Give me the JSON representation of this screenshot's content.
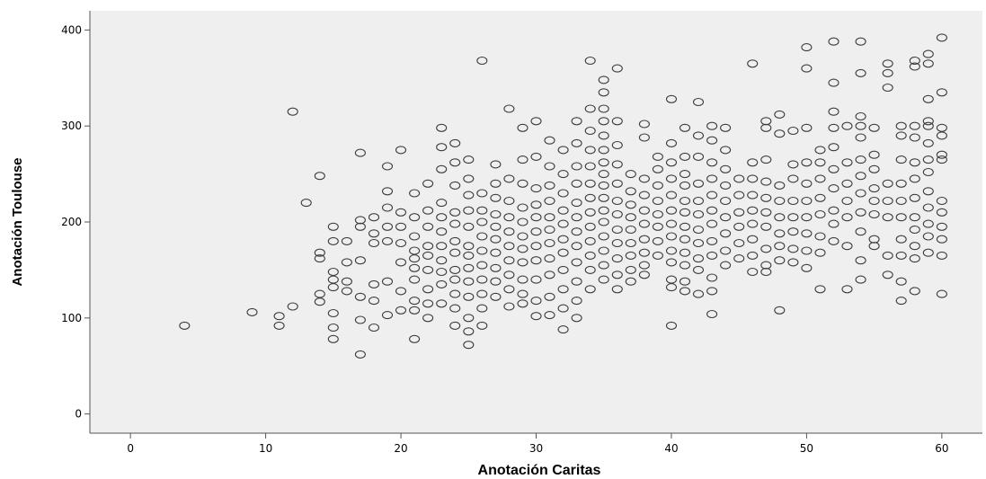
{
  "chart_data": {
    "type": "scatter",
    "title": "",
    "xlabel": "Anotación Caritas",
    "ylabel": "Anotación Toulouse",
    "xlim": [
      -3,
      63
    ],
    "ylim": [
      -20,
      420
    ],
    "xticks": [
      0,
      10,
      20,
      30,
      40,
      50,
      60
    ],
    "yticks": [
      0,
      100,
      200,
      300,
      400
    ],
    "grid": false,
    "legend": "none",
    "colors": {
      "plot_background": "#efefef",
      "marker_stroke": "#3c3c3c",
      "axis": "#555555"
    },
    "marker": "open-circle",
    "points": [
      [
        4,
        92
      ],
      [
        9,
        106
      ],
      [
        11,
        102
      ],
      [
        11,
        92
      ],
      [
        12,
        112
      ],
      [
        12,
        315
      ],
      [
        13,
        220
      ],
      [
        14,
        248
      ],
      [
        14,
        168
      ],
      [
        14,
        162
      ],
      [
        14,
        125
      ],
      [
        14,
        117
      ],
      [
        15,
        195
      ],
      [
        15,
        180
      ],
      [
        15,
        148
      ],
      [
        15,
        140
      ],
      [
        15,
        132
      ],
      [
        15,
        105
      ],
      [
        15,
        90
      ],
      [
        15,
        78
      ],
      [
        16,
        180
      ],
      [
        16,
        158
      ],
      [
        16,
        138
      ],
      [
        16,
        128
      ],
      [
        17,
        272
      ],
      [
        17,
        202
      ],
      [
        17,
        195
      ],
      [
        17,
        160
      ],
      [
        17,
        122
      ],
      [
        17,
        98
      ],
      [
        17,
        62
      ],
      [
        18,
        205
      ],
      [
        18,
        188
      ],
      [
        18,
        178
      ],
      [
        18,
        135
      ],
      [
        18,
        118
      ],
      [
        18,
        90
      ],
      [
        19,
        258
      ],
      [
        19,
        232
      ],
      [
        19,
        215
      ],
      [
        19,
        195
      ],
      [
        19,
        180
      ],
      [
        19,
        138
      ],
      [
        19,
        103
      ],
      [
        20,
        275
      ],
      [
        20,
        210
      ],
      [
        20,
        195
      ],
      [
        20,
        178
      ],
      [
        20,
        158
      ],
      [
        20,
        128
      ],
      [
        20,
        108
      ],
      [
        21,
        230
      ],
      [
        21,
        205
      ],
      [
        21,
        185
      ],
      [
        21,
        170
      ],
      [
        21,
        162
      ],
      [
        21,
        152
      ],
      [
        21,
        140
      ],
      [
        21,
        118
      ],
      [
        21,
        108
      ],
      [
        21,
        78
      ],
      [
        22,
        240
      ],
      [
        22,
        212
      ],
      [
        22,
        195
      ],
      [
        22,
        175
      ],
      [
        22,
        165
      ],
      [
        22,
        150
      ],
      [
        22,
        130
      ],
      [
        22,
        115
      ],
      [
        22,
        100
      ],
      [
        23,
        298
      ],
      [
        23,
        278
      ],
      [
        23,
        255
      ],
      [
        23,
        220
      ],
      [
        23,
        205
      ],
      [
        23,
        190
      ],
      [
        23,
        175
      ],
      [
        23,
        160
      ],
      [
        23,
        148
      ],
      [
        23,
        135
      ],
      [
        23,
        115
      ],
      [
        24,
        282
      ],
      [
        24,
        262
      ],
      [
        24,
        238
      ],
      [
        24,
        210
      ],
      [
        24,
        198
      ],
      [
        24,
        180
      ],
      [
        24,
        168
      ],
      [
        24,
        150
      ],
      [
        24,
        140
      ],
      [
        24,
        125
      ],
      [
        24,
        110
      ],
      [
        24,
        92
      ],
      [
        25,
        265
      ],
      [
        25,
        245
      ],
      [
        25,
        228
      ],
      [
        25,
        212
      ],
      [
        25,
        195
      ],
      [
        25,
        175
      ],
      [
        25,
        165
      ],
      [
        25,
        152
      ],
      [
        25,
        138
      ],
      [
        25,
        122
      ],
      [
        25,
        100
      ],
      [
        25,
        86
      ],
      [
        25,
        72
      ],
      [
        26,
        368
      ],
      [
        26,
        230
      ],
      [
        26,
        212
      ],
      [
        26,
        200
      ],
      [
        26,
        185
      ],
      [
        26,
        170
      ],
      [
        26,
        155
      ],
      [
        26,
        140
      ],
      [
        26,
        125
      ],
      [
        26,
        110
      ],
      [
        26,
        92
      ],
      [
        27,
        260
      ],
      [
        27,
        240
      ],
      [
        27,
        225
      ],
      [
        27,
        208
      ],
      [
        27,
        195
      ],
      [
        27,
        182
      ],
      [
        27,
        168
      ],
      [
        27,
        152
      ],
      [
        27,
        138
      ],
      [
        27,
        122
      ],
      [
        28,
        318
      ],
      [
        28,
        245
      ],
      [
        28,
        222
      ],
      [
        28,
        205
      ],
      [
        28,
        190
      ],
      [
        28,
        175
      ],
      [
        28,
        160
      ],
      [
        28,
        145
      ],
      [
        28,
        130
      ],
      [
        28,
        112
      ],
      [
        29,
        298
      ],
      [
        29,
        265
      ],
      [
        29,
        240
      ],
      [
        29,
        215
      ],
      [
        29,
        200
      ],
      [
        29,
        185
      ],
      [
        29,
        172
      ],
      [
        29,
        158
      ],
      [
        29,
        140
      ],
      [
        29,
        125
      ],
      [
        29,
        115
      ],
      [
        30,
        305
      ],
      [
        30,
        268
      ],
      [
        30,
        235
      ],
      [
        30,
        218
      ],
      [
        30,
        205
      ],
      [
        30,
        190
      ],
      [
        30,
        175
      ],
      [
        30,
        160
      ],
      [
        30,
        140
      ],
      [
        30,
        118
      ],
      [
        30,
        102
      ],
      [
        31,
        285
      ],
      [
        31,
        258
      ],
      [
        31,
        238
      ],
      [
        31,
        222
      ],
      [
        31,
        205
      ],
      [
        31,
        192
      ],
      [
        31,
        178
      ],
      [
        31,
        162
      ],
      [
        31,
        145
      ],
      [
        31,
        122
      ],
      [
        31,
        103
      ],
      [
        32,
        275
      ],
      [
        32,
        250
      ],
      [
        32,
        230
      ],
      [
        32,
        212
      ],
      [
        32,
        198
      ],
      [
        32,
        182
      ],
      [
        32,
        168
      ],
      [
        32,
        150
      ],
      [
        32,
        130
      ],
      [
        32,
        110
      ],
      [
        32,
        88
      ],
      [
        33,
        305
      ],
      [
        33,
        282
      ],
      [
        33,
        258
      ],
      [
        33,
        240
      ],
      [
        33,
        220
      ],
      [
        33,
        205
      ],
      [
        33,
        190
      ],
      [
        33,
        175
      ],
      [
        33,
        158
      ],
      [
        33,
        138
      ],
      [
        33,
        118
      ],
      [
        33,
        100
      ],
      [
        34,
        368
      ],
      [
        34,
        318
      ],
      [
        34,
        295
      ],
      [
        34,
        275
      ],
      [
        34,
        258
      ],
      [
        34,
        240
      ],
      [
        34,
        225
      ],
      [
        34,
        210
      ],
      [
        34,
        195
      ],
      [
        34,
        180
      ],
      [
        34,
        165
      ],
      [
        34,
        150
      ],
      [
        34,
        130
      ],
      [
        35,
        348
      ],
      [
        35,
        335
      ],
      [
        35,
        318
      ],
      [
        35,
        305
      ],
      [
        35,
        290
      ],
      [
        35,
        275
      ],
      [
        35,
        262
      ],
      [
        35,
        250
      ],
      [
        35,
        238
      ],
      [
        35,
        225
      ],
      [
        35,
        212
      ],
      [
        35,
        200
      ],
      [
        35,
        185
      ],
      [
        35,
        170
      ],
      [
        35,
        155
      ],
      [
        35,
        140
      ],
      [
        36,
        360
      ],
      [
        36,
        305
      ],
      [
        36,
        280
      ],
      [
        36,
        260
      ],
      [
        36,
        240
      ],
      [
        36,
        222
      ],
      [
        36,
        208
      ],
      [
        36,
        192
      ],
      [
        36,
        178
      ],
      [
        36,
        162
      ],
      [
        36,
        145
      ],
      [
        36,
        130
      ],
      [
        37,
        250
      ],
      [
        37,
        232
      ],
      [
        37,
        218
      ],
      [
        37,
        205
      ],
      [
        37,
        192
      ],
      [
        37,
        178
      ],
      [
        37,
        165
      ],
      [
        37,
        150
      ],
      [
        37,
        138
      ],
      [
        38,
        302
      ],
      [
        38,
        288
      ],
      [
        38,
        245
      ],
      [
        38,
        228
      ],
      [
        38,
        212
      ],
      [
        38,
        198
      ],
      [
        38,
        182
      ],
      [
        38,
        168
      ],
      [
        38,
        155
      ],
      [
        38,
        145
      ],
      [
        39,
        268
      ],
      [
        39,
        255
      ],
      [
        39,
        238
      ],
      [
        39,
        222
      ],
      [
        39,
        208
      ],
      [
        39,
        195
      ],
      [
        39,
        180
      ],
      [
        39,
        165
      ],
      [
        40,
        328
      ],
      [
        40,
        282
      ],
      [
        40,
        262
      ],
      [
        40,
        245
      ],
      [
        40,
        228
      ],
      [
        40,
        212
      ],
      [
        40,
        198
      ],
      [
        40,
        185
      ],
      [
        40,
        170
      ],
      [
        40,
        158
      ],
      [
        40,
        140
      ],
      [
        40,
        132
      ],
      [
        40,
        92
      ],
      [
        41,
        298
      ],
      [
        41,
        268
      ],
      [
        41,
        250
      ],
      [
        41,
        238
      ],
      [
        41,
        222
      ],
      [
        41,
        210
      ],
      [
        41,
        195
      ],
      [
        41,
        182
      ],
      [
        41,
        168
      ],
      [
        41,
        155
      ],
      [
        41,
        138
      ],
      [
        41,
        128
      ],
      [
        42,
        325
      ],
      [
        42,
        290
      ],
      [
        42,
        268
      ],
      [
        42,
        240
      ],
      [
        42,
        222
      ],
      [
        42,
        208
      ],
      [
        42,
        192
      ],
      [
        42,
        178
      ],
      [
        42,
        162
      ],
      [
        42,
        150
      ],
      [
        42,
        125
      ],
      [
        43,
        300
      ],
      [
        43,
        285
      ],
      [
        43,
        262
      ],
      [
        43,
        245
      ],
      [
        43,
        228
      ],
      [
        43,
        212
      ],
      [
        43,
        198
      ],
      [
        43,
        180
      ],
      [
        43,
        165
      ],
      [
        43,
        142
      ],
      [
        43,
        128
      ],
      [
        43,
        104
      ],
      [
        44,
        298
      ],
      [
        44,
        275
      ],
      [
        44,
        255
      ],
      [
        44,
        238
      ],
      [
        44,
        222
      ],
      [
        44,
        205
      ],
      [
        44,
        188
      ],
      [
        44,
        170
      ],
      [
        44,
        155
      ],
      [
        45,
        245
      ],
      [
        45,
        228
      ],
      [
        45,
        210
      ],
      [
        45,
        195
      ],
      [
        45,
        178
      ],
      [
        45,
        162
      ],
      [
        46,
        365
      ],
      [
        46,
        262
      ],
      [
        46,
        245
      ],
      [
        46,
        228
      ],
      [
        46,
        212
      ],
      [
        46,
        198
      ],
      [
        46,
        182
      ],
      [
        46,
        165
      ],
      [
        46,
        148
      ],
      [
        47,
        305
      ],
      [
        47,
        298
      ],
      [
        47,
        265
      ],
      [
        47,
        242
      ],
      [
        47,
        225
      ],
      [
        47,
        210
      ],
      [
        47,
        195
      ],
      [
        47,
        172
      ],
      [
        47,
        155
      ],
      [
        47,
        148
      ],
      [
        48,
        312
      ],
      [
        48,
        292
      ],
      [
        48,
        238
      ],
      [
        48,
        222
      ],
      [
        48,
        205
      ],
      [
        48,
        188
      ],
      [
        48,
        175
      ],
      [
        48,
        160
      ],
      [
        48,
        108
      ],
      [
        49,
        295
      ],
      [
        49,
        260
      ],
      [
        49,
        245
      ],
      [
        49,
        222
      ],
      [
        49,
        205
      ],
      [
        49,
        190
      ],
      [
        49,
        172
      ],
      [
        49,
        158
      ],
      [
        50,
        382
      ],
      [
        50,
        360
      ],
      [
        50,
        298
      ],
      [
        50,
        262
      ],
      [
        50,
        240
      ],
      [
        50,
        222
      ],
      [
        50,
        205
      ],
      [
        50,
        188
      ],
      [
        50,
        170
      ],
      [
        50,
        152
      ],
      [
        51,
        275
      ],
      [
        51,
        262
      ],
      [
        51,
        245
      ],
      [
        51,
        225
      ],
      [
        51,
        208
      ],
      [
        51,
        185
      ],
      [
        51,
        168
      ],
      [
        51,
        130
      ],
      [
        52,
        388
      ],
      [
        52,
        345
      ],
      [
        52,
        315
      ],
      [
        52,
        298
      ],
      [
        52,
        278
      ],
      [
        52,
        255
      ],
      [
        52,
        235
      ],
      [
        52,
        212
      ],
      [
        52,
        198
      ],
      [
        52,
        180
      ],
      [
        53,
        300
      ],
      [
        53,
        262
      ],
      [
        53,
        240
      ],
      [
        53,
        222
      ],
      [
        53,
        205
      ],
      [
        53,
        175
      ],
      [
        53,
        130
      ],
      [
        54,
        388
      ],
      [
        54,
        355
      ],
      [
        54,
        310
      ],
      [
        54,
        300
      ],
      [
        54,
        288
      ],
      [
        54,
        265
      ],
      [
        54,
        248
      ],
      [
        54,
        230
      ],
      [
        54,
        210
      ],
      [
        54,
        190
      ],
      [
        54,
        160
      ],
      [
        54,
        140
      ],
      [
        55,
        298
      ],
      [
        55,
        270
      ],
      [
        55,
        255
      ],
      [
        55,
        235
      ],
      [
        55,
        222
      ],
      [
        55,
        208
      ],
      [
        55,
        182
      ],
      [
        55,
        175
      ],
      [
        56,
        365
      ],
      [
        56,
        355
      ],
      [
        56,
        340
      ],
      [
        56,
        240
      ],
      [
        56,
        222
      ],
      [
        56,
        205
      ],
      [
        56,
        165
      ],
      [
        56,
        145
      ],
      [
        57,
        300
      ],
      [
        57,
        290
      ],
      [
        57,
        265
      ],
      [
        57,
        240
      ],
      [
        57,
        222
      ],
      [
        57,
        205
      ],
      [
        57,
        182
      ],
      [
        57,
        165
      ],
      [
        57,
        138
      ],
      [
        57,
        118
      ],
      [
        58,
        368
      ],
      [
        58,
        362
      ],
      [
        58,
        300
      ],
      [
        58,
        288
      ],
      [
        58,
        262
      ],
      [
        58,
        245
      ],
      [
        58,
        225
      ],
      [
        58,
        205
      ],
      [
        58,
        192
      ],
      [
        58,
        175
      ],
      [
        58,
        162
      ],
      [
        58,
        128
      ],
      [
        59,
        375
      ],
      [
        59,
        365
      ],
      [
        59,
        328
      ],
      [
        59,
        305
      ],
      [
        59,
        300
      ],
      [
        59,
        282
      ],
      [
        59,
        265
      ],
      [
        59,
        252
      ],
      [
        59,
        232
      ],
      [
        59,
        215
      ],
      [
        59,
        198
      ],
      [
        59,
        185
      ],
      [
        59,
        168
      ],
      [
        60,
        392
      ],
      [
        60,
        335
      ],
      [
        60,
        298
      ],
      [
        60,
        290
      ],
      [
        60,
        270
      ],
      [
        60,
        265
      ],
      [
        60,
        222
      ],
      [
        60,
        210
      ],
      [
        60,
        195
      ],
      [
        60,
        182
      ],
      [
        60,
        165
      ],
      [
        60,
        125
      ]
    ]
  }
}
